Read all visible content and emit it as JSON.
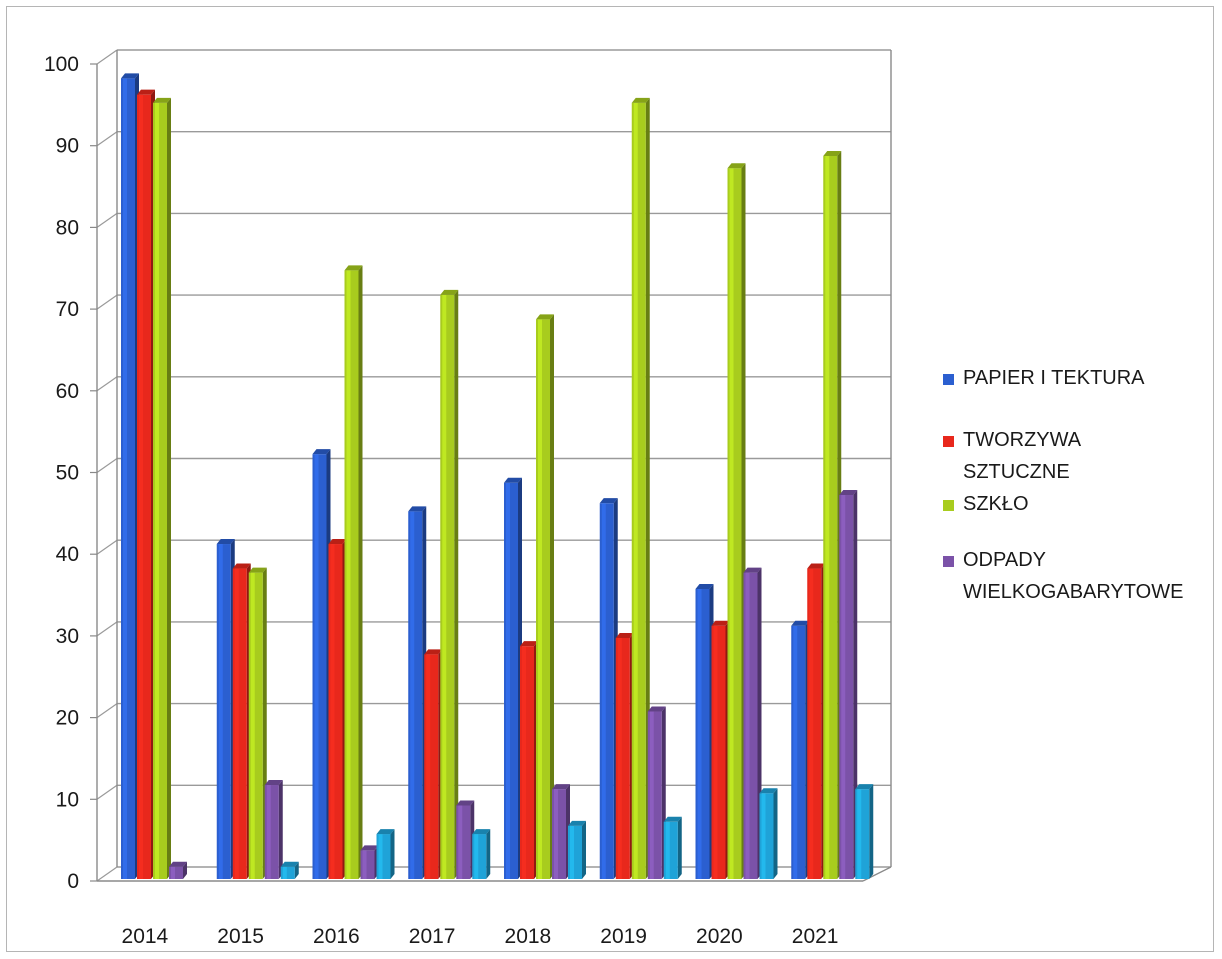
{
  "chart_data": {
    "type": "bar",
    "title": "",
    "xlabel": "",
    "ylabel": "",
    "categories": [
      "2014",
      "2015",
      "2016",
      "2017",
      "2018",
      "2019",
      "2020",
      "2021"
    ],
    "ylim": [
      0,
      100
    ],
    "yticks": [
      "0",
      "10",
      "20",
      "30",
      "40",
      "50",
      "60",
      "70",
      "80",
      "90",
      "100"
    ],
    "grid": true,
    "legend_position": "right",
    "series": [
      {
        "name": "PAPIER I TEKTURA",
        "color": "#2b5fd0",
        "values": [
          98,
          41,
          52,
          45,
          48.5,
          46,
          35.5,
          31
        ]
      },
      {
        "name": "TWORZYWA SZTUCZNE",
        "color": "#e8281c",
        "values": [
          96,
          38,
          41,
          27.5,
          28.5,
          29.5,
          31,
          38
        ]
      },
      {
        "name": "SZKŁO",
        "color": "#a8cc1e",
        "values": [
          95,
          37.5,
          74.5,
          71.5,
          68.5,
          95,
          87,
          88.5
        ]
      },
      {
        "name": "ODPADY WIELKOGABARYTOWE",
        "color": "#7b52a8",
        "values": [
          1.5,
          11.5,
          3.5,
          9,
          11,
          20.5,
          37.5,
          47
        ]
      },
      {
        "name": "",
        "color": "#1fa3d8",
        "values": [
          0,
          1.5,
          5.5,
          5.5,
          6.5,
          7,
          10.5,
          11
        ]
      }
    ]
  }
}
